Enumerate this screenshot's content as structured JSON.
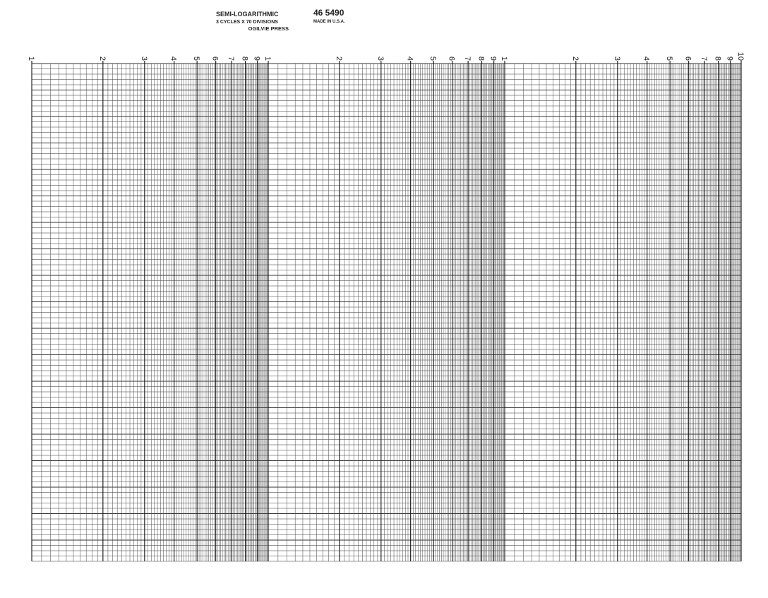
{
  "header": {
    "title": "SEMI-LOGARITHMIC",
    "subtitle": "3 CYCLES X 70 DIVISIONS",
    "publisher": "OGILVIE PRESS",
    "code": "46 5490",
    "origin": "MADE IN U.S.A."
  },
  "axis": {
    "cycles": [
      [
        1,
        2,
        3,
        4,
        5,
        6,
        7,
        8,
        9
      ],
      [
        1,
        2,
        3,
        4,
        5,
        6,
        7,
        8,
        9
      ],
      [
        1,
        2,
        3,
        4,
        5,
        6,
        7,
        8,
        9,
        10
      ]
    ]
  }
}
